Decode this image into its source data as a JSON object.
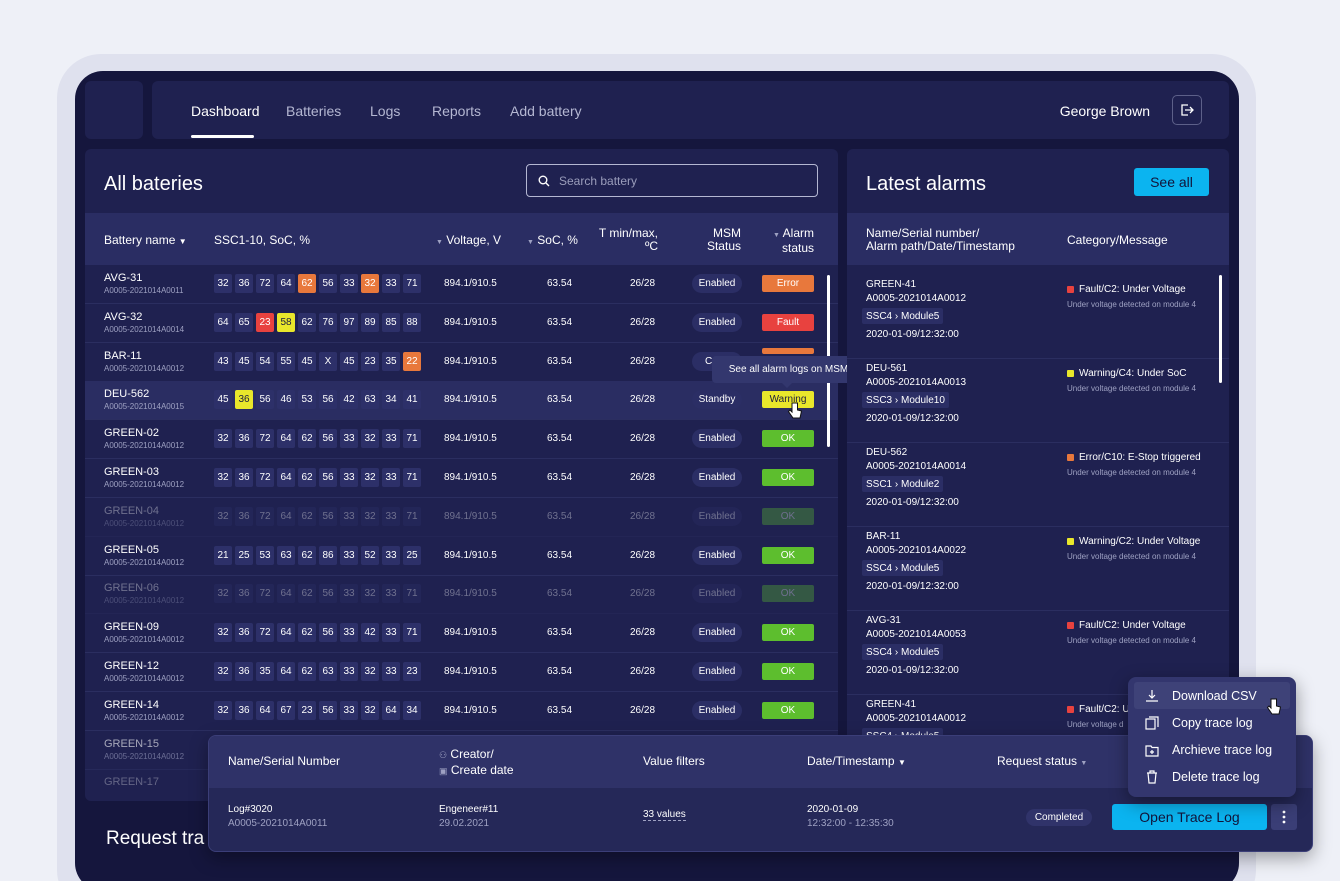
{
  "nav": {
    "tabs": [
      "Dashboard",
      "Batteries",
      "Logs",
      "Reports",
      "Add battery"
    ],
    "active": "Dashboard",
    "user_name": "George Brown"
  },
  "batteries": {
    "title": "All bateries",
    "search_placeholder": "Search battery",
    "columns": {
      "battery_name": "Battery name",
      "ssc": "SSC1-10, SoC, %",
      "voltage": "Voltage, V",
      "soc": "SoC, %",
      "temp_1": "T min/max,",
      "temp_2": "ºC",
      "msm_1": "MSM",
      "msm_2": "Status",
      "alarm_1": "Alarm",
      "alarm_2": "status"
    },
    "rows": [
      {
        "name": "AVG-31",
        "serial": "A0005-2021014A0011",
        "cells": [
          "32",
          "36",
          "72",
          "64",
          "62",
          "56",
          "33",
          "32",
          "33",
          "71"
        ],
        "voltage": "894.1/910.5",
        "soc": "63.54",
        "temp": "26/28",
        "msm": "Enabled",
        "alarm": "Error"
      },
      {
        "name": "AVG-32",
        "serial": "A0005-2021014A0014",
        "cells": [
          "64",
          "65",
          "23",
          "58",
          "62",
          "76",
          "97",
          "89",
          "85",
          "88"
        ],
        "voltage": "894.1/910.5",
        "soc": "63.54",
        "temp": "26/28",
        "msm": "Enabled",
        "alarm": "Fault"
      },
      {
        "name": "BAR-11",
        "serial": "A0005-2021014A0012",
        "cells": [
          "43",
          "45",
          "54",
          "55",
          "45",
          "X",
          "45",
          "23",
          "35",
          "22"
        ],
        "voltage": "894.1/910.5",
        "soc": "63.54",
        "temp": "26/28",
        "msm": "Conn",
        "alarm": ""
      },
      {
        "name": "DEU-562",
        "serial": "A0005-2021014A0015",
        "cells": [
          "45",
          "36",
          "56",
          "46",
          "53",
          "56",
          "42",
          "63",
          "34",
          "41"
        ],
        "voltage": "894.1/910.5",
        "soc": "63.54",
        "temp": "26/28",
        "msm": "Standby",
        "alarm": "Warning"
      },
      {
        "name": "GREEN-02",
        "serial": "A0005-2021014A0012",
        "cells": [
          "32",
          "36",
          "72",
          "64",
          "62",
          "56",
          "33",
          "32",
          "33",
          "71"
        ],
        "voltage": "894.1/910.5",
        "soc": "63.54",
        "temp": "26/28",
        "msm": "Enabled",
        "alarm": "OK"
      },
      {
        "name": "GREEN-03",
        "serial": "A0005-2021014A0012",
        "cells": [
          "32",
          "36",
          "72",
          "64",
          "62",
          "56",
          "33",
          "32",
          "33",
          "71"
        ],
        "voltage": "894.1/910.5",
        "soc": "63.54",
        "temp": "26/28",
        "msm": "Enabled",
        "alarm": "OK"
      },
      {
        "name": "GREEN-04",
        "serial": "A0005-2021014A0012",
        "cells": [
          "32",
          "36",
          "72",
          "64",
          "62",
          "56",
          "33",
          "32",
          "33",
          "71"
        ],
        "voltage": "894.1/910.5",
        "soc": "63.54",
        "temp": "26/28",
        "msm": "Enabled",
        "alarm": "OK"
      },
      {
        "name": "GREEN-05",
        "serial": "A0005-2021014A0012",
        "cells": [
          "21",
          "25",
          "53",
          "63",
          "62",
          "86",
          "33",
          "52",
          "33",
          "25"
        ],
        "voltage": "894.1/910.5",
        "soc": "63.54",
        "temp": "26/28",
        "msm": "Enabled",
        "alarm": "OK"
      },
      {
        "name": "GREEN-06",
        "serial": "A0005-2021014A0012",
        "cells": [
          "32",
          "36",
          "72",
          "64",
          "62",
          "56",
          "33",
          "32",
          "33",
          "71"
        ],
        "voltage": "894.1/910.5",
        "soc": "63.54",
        "temp": "26/28",
        "msm": "Enabled",
        "alarm": "OK"
      },
      {
        "name": "GREEN-09",
        "serial": "A0005-2021014A0012",
        "cells": [
          "32",
          "36",
          "72",
          "64",
          "62",
          "56",
          "33",
          "42",
          "33",
          "71"
        ],
        "voltage": "894.1/910.5",
        "soc": "63.54",
        "temp": "26/28",
        "msm": "Enabled",
        "alarm": "OK"
      },
      {
        "name": "GREEN-12",
        "serial": "A0005-2021014A0012",
        "cells": [
          "32",
          "36",
          "35",
          "64",
          "62",
          "63",
          "33",
          "32",
          "33",
          "23"
        ],
        "voltage": "894.1/910.5",
        "soc": "63.54",
        "temp": "26/28",
        "msm": "Enabled",
        "alarm": "OK"
      },
      {
        "name": "GREEN-14",
        "serial": "A0005-2021014A0012",
        "cells": [
          "32",
          "36",
          "64",
          "67",
          "23",
          "56",
          "33",
          "32",
          "64",
          "34"
        ],
        "voltage": "894.1/910.5",
        "soc": "63.54",
        "temp": "26/28",
        "msm": "Enabled",
        "alarm": "OK"
      },
      {
        "name": "GREEN-15",
        "serial": "A0005-2021014A0012",
        "cells": [],
        "voltage": "",
        "soc": "",
        "temp": "",
        "msm": "",
        "alarm": ""
      },
      {
        "name": "GREEN-17",
        "serial": "",
        "cells": [],
        "voltage": "",
        "soc": "",
        "temp": "",
        "msm": "",
        "alarm": ""
      }
    ],
    "tooltip": "See all alarm logs on MSM"
  },
  "alarms": {
    "title": "Latest alarms",
    "see_all": "See all",
    "col_1a": "Name/Serial number/",
    "col_1b": "Alarm path/Date/Timestamp",
    "col_2": "Category/Message",
    "items": [
      {
        "name": "GREEN-41",
        "serial": "A0005-2021014A0012",
        "path": "SSC4 › Module5",
        "date": "2020-01-09/12:32:00",
        "category": "Fault/C2: Under Voltage",
        "message": "Under voltage detected on module 4",
        "color": "#e8423f"
      },
      {
        "name": "DEU-561",
        "serial": "A0005-2021014A0013",
        "path": "SSC3 › Module10",
        "date": "2020-01-09/12:32:00",
        "category": "Warning/C4: Under SoC",
        "message": "Under voltage detected on module 4",
        "color": "#e9e72b"
      },
      {
        "name": "DEU-562",
        "serial": "A0005-2021014A0014",
        "path": "SSC1 › Module2",
        "date": "2020-01-09/12:32:00",
        "category": "Error/C10: E-Stop triggered",
        "message": "Under voltage detected on module 4",
        "color": "#e8783c"
      },
      {
        "name": "BAR-11",
        "serial": "A0005-2021014A0022",
        "path": "SSC4 › Module5",
        "date": "2020-01-09/12:32:00",
        "category": "Warning/C2: Under Voltage",
        "message": "Under voltage detected on module 4",
        "color": "#e9e72b"
      },
      {
        "name": "AVG-31",
        "serial": "A0005-2021014A0053",
        "path": "SSC4 › Module5",
        "date": "2020-01-09/12:32:00",
        "category": "Fault/C2: Under Voltage",
        "message": "Under voltage detected on module 4",
        "color": "#e8423f"
      },
      {
        "name": "GREEN-41",
        "serial": "A0005-2021014A0012",
        "path": "SSC4 › Module5",
        "date": "",
        "category": "Fault/C2: U",
        "message": "Under voltage d",
        "color": "#e8423f"
      }
    ]
  },
  "request": {
    "section_title": "Request tra",
    "col_name": "Name/Serial Number",
    "col_creator": "Creator/",
    "col_created": "Create date",
    "col_filters": "Value filters",
    "col_date": "Date/Timestamp",
    "col_status": "Request status",
    "row": {
      "name": "Log#3020",
      "serial": "A0005-2021014A0011",
      "creator": "Engeneer#11",
      "created": "29.02.2021",
      "filters": "33 values",
      "date": "2020-01-09",
      "time": "12:32:00 - 12:35:30",
      "status": "Completed"
    },
    "open_button": "Open Trace Log"
  },
  "menu": {
    "items": [
      "Download CSV",
      "Copy trace log",
      "Archieve trace log",
      "Delete trace log"
    ]
  }
}
